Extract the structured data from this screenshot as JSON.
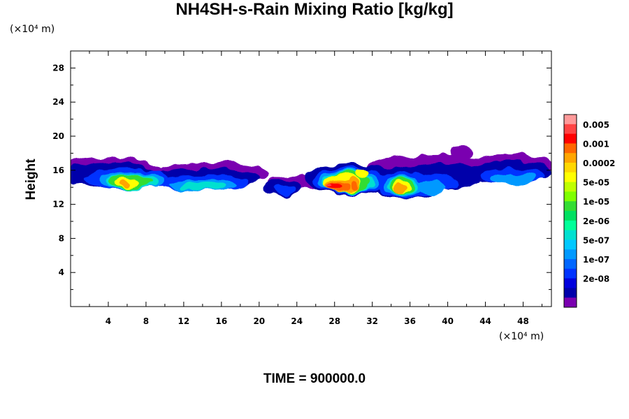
{
  "chart_data": {
    "type": "heatmap",
    "title": "NH4SH-s-Rain Mixing Ratio [kg/kg]",
    "xlabel": "",
    "ylabel": "Height",
    "x_unit": "(×10⁴ m)",
    "y_unit": "(×10⁴ m)",
    "xlim": [
      0,
      51
    ],
    "ylim": [
      0,
      30
    ],
    "x_ticks": [
      4,
      8,
      12,
      16,
      20,
      24,
      28,
      32,
      36,
      40,
      44,
      48
    ],
    "y_ticks": [
      4,
      8,
      12,
      16,
      20,
      24,
      28
    ],
    "x_minor_step": 2,
    "y_minor_step": 2,
    "grid": false,
    "legend_position": "right",
    "colorbar": {
      "labels": [
        "0.005",
        "0.001",
        "0.0002",
        "5e-05",
        "1e-05",
        "2e-06",
        "5e-07",
        "1e-07",
        "2e-08"
      ],
      "colors": [
        "#ff9a9a",
        "#ff4444",
        "#ff0000",
        "#ff6600",
        "#ffa500",
        "#ffd700",
        "#ffff00",
        "#bfff00",
        "#7fff00",
        "#33dd33",
        "#00e060",
        "#00ff99",
        "#00e0d0",
        "#00c8ff",
        "#0099ff",
        "#0066ff",
        "#0033ff",
        "#0000dd",
        "#0000aa",
        "#7a00b0"
      ]
    },
    "field_levels": [
      {
        "level": 0,
        "color": "#7a00b0",
        "blobs": [
          [
            4,
            16.0,
            5.5,
            1.6
          ],
          [
            15,
            15.6,
            6,
            1.3
          ],
          [
            24,
            14.6,
            3.2,
            0.9
          ],
          [
            39,
            16.6,
            7.5,
            1.2
          ],
          [
            46.5,
            16.6,
            4.8,
            1.3
          ],
          [
            41.5,
            18.1,
            1.2,
            0.8
          ]
        ]
      },
      {
        "level": 1,
        "color": "#0000aa",
        "blobs": [
          [
            4,
            15.5,
            5,
            1.5
          ],
          [
            14,
            15.0,
            6,
            1.2
          ],
          [
            22.5,
            14.0,
            2,
            1.0
          ],
          [
            29.5,
            15.0,
            4.5,
            1.9
          ],
          [
            35.5,
            14.5,
            3.5,
            1.9
          ],
          [
            39.5,
            15.3,
            4.0,
            1.6
          ],
          [
            46.5,
            15.8,
            4.6,
            1.3
          ]
        ]
      },
      {
        "level": 2,
        "color": "#0033ff",
        "blobs": [
          [
            6,
            15.0,
            4.5,
            1.2
          ],
          [
            14,
            14.6,
            5,
            0.9
          ],
          [
            22.7,
            13.8,
            1.2,
            0.6
          ],
          [
            29.5,
            14.8,
            3.8,
            1.6
          ],
          [
            35.5,
            14.3,
            3.0,
            1.6
          ],
          [
            38.7,
            14.6,
            2.5,
            1.0
          ],
          [
            47,
            15.3,
            3.4,
            0.9
          ]
        ]
      },
      {
        "level": 3,
        "color": "#0099ff",
        "blobs": [
          [
            6.5,
            14.8,
            3.5,
            1.0
          ],
          [
            14,
            14.3,
            3.5,
            0.7
          ],
          [
            29.5,
            14.7,
            3.2,
            1.4
          ],
          [
            35.2,
            14.2,
            2.0,
            1.3
          ],
          [
            38.2,
            14.0,
            1.7,
            0.8
          ],
          [
            47,
            15.0,
            2.4,
            0.7
          ]
        ]
      },
      {
        "level": 4,
        "color": "#00e0d0",
        "blobs": [
          [
            6.5,
            14.7,
            2.8,
            0.9
          ],
          [
            14,
            14.2,
            2.5,
            0.5
          ],
          [
            29.5,
            14.6,
            2.8,
            1.3
          ],
          [
            35.2,
            14.2,
            1.6,
            1.1
          ]
        ]
      },
      {
        "level": 5,
        "color": "#33dd33",
        "blobs": [
          [
            6.3,
            14.7,
            2.3,
            0.8
          ],
          [
            29.5,
            14.6,
            2.5,
            1.2
          ],
          [
            35.1,
            14.2,
            1.3,
            1.0
          ]
        ]
      },
      {
        "level": 6,
        "color": "#ffff00",
        "blobs": [
          [
            6.0,
            14.6,
            1.3,
            0.6
          ],
          [
            28.8,
            14.5,
            2.0,
            1.1
          ],
          [
            31.0,
            15.7,
            0.8,
            0.6
          ],
          [
            35.0,
            14.1,
            0.9,
            0.8
          ]
        ]
      },
      {
        "level": 7,
        "color": "#ffa500",
        "blobs": [
          [
            5.8,
            14.5,
            0.6,
            0.4
          ],
          [
            28.5,
            14.2,
            1.6,
            0.8
          ],
          [
            30.0,
            14.4,
            0.7,
            0.7
          ],
          [
            34.9,
            13.9,
            0.6,
            0.6
          ]
        ]
      },
      {
        "level": 8,
        "color": "#ff6600",
        "blobs": [
          [
            28.3,
            14.1,
            1.2,
            0.6
          ],
          [
            30.0,
            14.2,
            0.4,
            0.4
          ]
        ]
      },
      {
        "level": 9,
        "color": "#ff0000",
        "blobs": [
          [
            28.0,
            14.1,
            0.8,
            0.4
          ]
        ]
      },
      {
        "level": 10,
        "color": "#ff4444",
        "blobs": [
          [
            27.5,
            14.2,
            0.4,
            0.2
          ]
        ]
      }
    ]
  },
  "time_label": "TIME = 900000.0"
}
